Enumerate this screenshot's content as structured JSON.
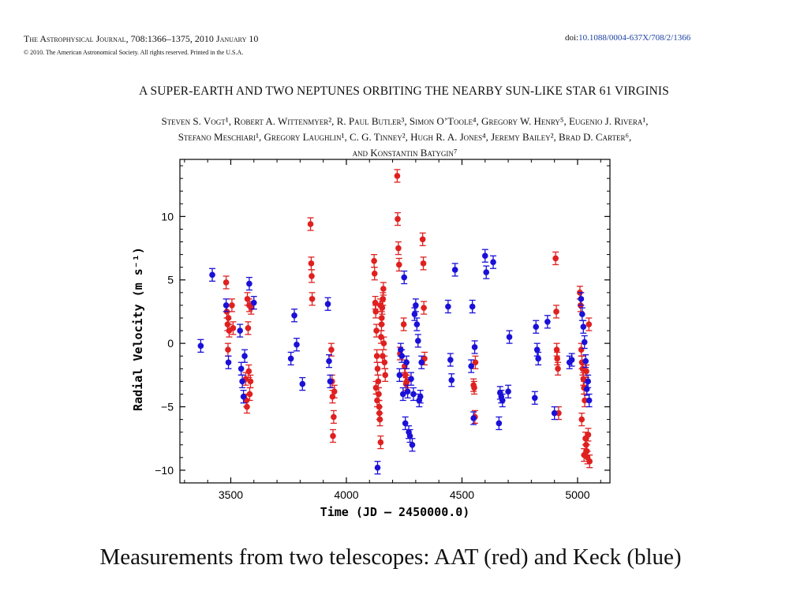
{
  "header": {
    "journal": "The Astrophysical Journal, 708:1366–1375, 2010 January 10",
    "copyright": "© 2010. The American Astronomical Society. All rights reserved. Printed in the U.S.A.",
    "doi_prefix": "doi:",
    "doi_value": "10.1088/0004-637X/708/2/1366"
  },
  "paper": {
    "title": "A SUPER-EARTH AND TWO NEPTUNES ORBITING THE NEARBY SUN-LIKE STAR 61 VIRGINIS",
    "authors_line1": "Steven S. Vogt¹, Robert A. Wittenmyer², R. Paul Butler³, Simon O’Toole⁴, Gregory W. Henry⁵, Eugenio J. Rivera¹,",
    "authors_line2": "Stefano Meschiari¹, Gregory Laughlin¹, C. G. Tinney², Hugh R. A. Jones⁴, Jeremy Bailey², Brad D. Carter⁶,",
    "authors_line3": "and Konstantin Batygin⁷"
  },
  "caption": "Measurements from two telescopes: AAT (red) and Keck (blue)",
  "colors": {
    "aat": "#e02020",
    "keck": "#1a10d8",
    "axis": "#000000"
  },
  "chart_data": {
    "type": "scatter",
    "title": "",
    "xlabel": "Time (JD – 2450000.0)",
    "ylabel": "Radial Velocity (m s⁻¹)",
    "xlim": [
      3280,
      5140
    ],
    "ylim": [
      -11,
      14.5
    ],
    "xticks": [
      3500,
      4000,
      4500,
      5000
    ],
    "yticks": [
      -10,
      -5,
      0,
      5,
      10
    ],
    "grid": false,
    "error_bars": true,
    "series": [
      {
        "color": "#e02020",
        "x": [
          3480,
          3483,
          3486,
          3488,
          3490,
          3493,
          3505,
          3510,
          3565,
          3568,
          3570,
          3572,
          3575,
          3578,
          3580,
          3582,
          3585,
          3588,
          3845,
          3848,
          3850,
          3852,
          3935,
          3938,
          3940,
          3942,
          3945,
          3948,
          4120,
          4122,
          4125,
          4127,
          4130,
          4132,
          4135,
          4138,
          4140,
          4142,
          4145,
          4148,
          4150,
          4152,
          4155,
          4158,
          4160,
          4162,
          4165,
          4168,
          4128,
          4133,
          4143,
          4147,
          4153,
          4157,
          4220,
          4222,
          4225,
          4228,
          4232,
          4248,
          4252,
          4255,
          4258,
          4262,
          4330,
          4333,
          4335,
          4338,
          4550,
          4553,
          4556,
          4558,
          4905,
          4908,
          4910,
          4912,
          4915,
          4918,
          5010,
          5013,
          5016,
          5019,
          5022,
          5025,
          5028,
          5031,
          5034,
          5037,
          5040,
          5043,
          5046,
          5049,
          5052,
          5018,
          5028,
          5038
        ],
        "y": [
          4.8,
          2.5,
          1.5,
          -0.5,
          2.0,
          1.0,
          3.0,
          1.2,
          -2.8,
          -4.5,
          -5.0,
          3.5,
          1.2,
          -2.2,
          3.0,
          -4.0,
          -3.0,
          2.8,
          9.4,
          6.3,
          5.3,
          3.5,
          -0.5,
          -3.0,
          -4.2,
          -7.3,
          -5.8,
          -3.8,
          6.5,
          5.5,
          3.2,
          2.5,
          1.0,
          -1.0,
          -2.0,
          -3.0,
          -4.0,
          -5.0,
          -6.0,
          -7.8,
          0.5,
          1.5,
          2.8,
          3.5,
          4.3,
          0.0,
          -1.5,
          -2.5,
          -3.5,
          -4.5,
          -5.5,
          3.0,
          2.0,
          -1.0,
          13.2,
          9.8,
          7.5,
          6.2,
          -0.8,
          1.5,
          -1.8,
          -2.5,
          -3.2,
          -3.0,
          8.2,
          6.3,
          2.8,
          -1.2,
          -3.3,
          -3.5,
          -5.8,
          -1.5,
          6.7,
          2.5,
          -0.5,
          -1.2,
          -2.0,
          -5.5,
          4.0,
          3.0,
          -0.5,
          -1.5,
          -2.0,
          -2.8,
          -3.5,
          -4.5,
          -7.5,
          -8.0,
          -8.5,
          -9.0,
          -7.2,
          1.5,
          -9.3,
          -6.0,
          -8.8,
          -2.2
        ]
      },
      {
        "color": "#1a10d8",
        "x": [
          3370,
          3420,
          3480,
          3490,
          3540,
          3545,
          3550,
          3555,
          3560,
          3580,
          3600,
          3760,
          3775,
          3785,
          3810,
          3920,
          3925,
          3930,
          4135,
          4230,
          4235,
          4240,
          4245,
          4250,
          4255,
          4260,
          4265,
          4270,
          4275,
          4280,
          4285,
          4290,
          4295,
          4300,
          4305,
          4310,
          4315,
          4320,
          4325,
          4440,
          4450,
          4455,
          4470,
          4540,
          4545,
          4550,
          4555,
          4600,
          4605,
          4635,
          4660,
          4665,
          4670,
          4675,
          4700,
          4705,
          4815,
          4820,
          4825,
          4830,
          4870,
          4900,
          4965,
          4975,
          5015,
          5020,
          5025,
          5030,
          5035,
          5040,
          5045,
          5050
        ],
        "y": [
          -0.2,
          5.4,
          3.0,
          -1.5,
          1.0,
          -2.0,
          -3.0,
          -4.2,
          -1.0,
          4.7,
          3.2,
          -1.2,
          2.2,
          -0.1,
          -3.2,
          3.1,
          -1.4,
          -3.0,
          -9.8,
          -2.5,
          -0.5,
          -1.0,
          -4.0,
          5.2,
          -6.3,
          -1.5,
          -3.8,
          -7.0,
          -7.3,
          -2.8,
          -8.0,
          -4.0,
          2.3,
          3.0,
          1.5,
          0.2,
          -4.5,
          -4.2,
          -1.5,
          2.9,
          -1.3,
          -2.9,
          5.8,
          -1.8,
          2.9,
          -5.9,
          -0.3,
          6.9,
          5.6,
          6.4,
          -6.3,
          -3.9,
          -4.2,
          -4.5,
          -3.8,
          0.5,
          -4.3,
          1.3,
          -0.5,
          -1.2,
          1.7,
          -5.5,
          -1.5,
          -1.3,
          3.5,
          2.3,
          1.3,
          0.1,
          -1.4,
          -3.6,
          -3.0,
          -4.5
        ]
      }
    ]
  }
}
